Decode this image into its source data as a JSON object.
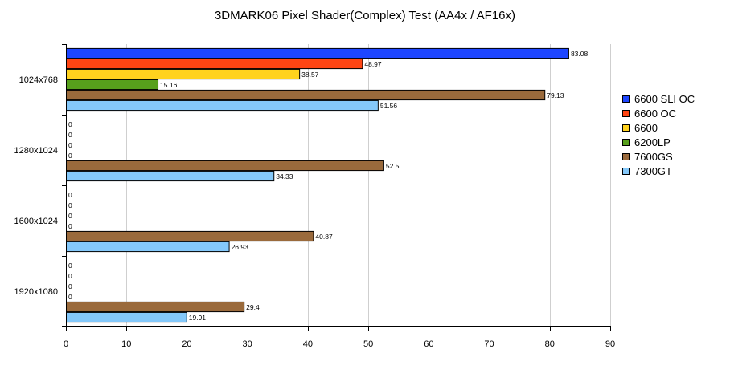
{
  "chart_data": {
    "type": "bar",
    "orientation": "horizontal",
    "title": "3DMARK06 Pixel Shader(Complex) Test  (AA4x / AF16x)",
    "xlabel": "",
    "ylabel": "",
    "xlim": [
      0,
      90
    ],
    "xticks": [
      0,
      10,
      20,
      30,
      40,
      50,
      60,
      70,
      80,
      90
    ],
    "grid": true,
    "legend_position": "right",
    "categories": [
      "1024x768",
      "1280x1024",
      "1600x1024",
      "1920x1080"
    ],
    "series": [
      {
        "name": "6600 SLI OC",
        "color": "#1e46ff",
        "values": [
          83.08,
          0,
          0,
          0
        ]
      },
      {
        "name": "6600 OC",
        "color": "#ff4513",
        "values": [
          48.97,
          0,
          0,
          0
        ]
      },
      {
        "name": "6600",
        "color": "#ffd21e",
        "values": [
          38.57,
          0,
          0,
          0
        ]
      },
      {
        "name": "6200LP",
        "color": "#57a01c",
        "values": [
          15.16,
          0,
          0,
          0
        ]
      },
      {
        "name": "7600GS",
        "color": "#9a6a3c",
        "values": [
          79.13,
          52.5,
          40.87,
          29.4
        ]
      },
      {
        "name": "7300GT",
        "color": "#84c8fa",
        "values": [
          51.56,
          34.33,
          26.93,
          19.91
        ]
      }
    ]
  }
}
